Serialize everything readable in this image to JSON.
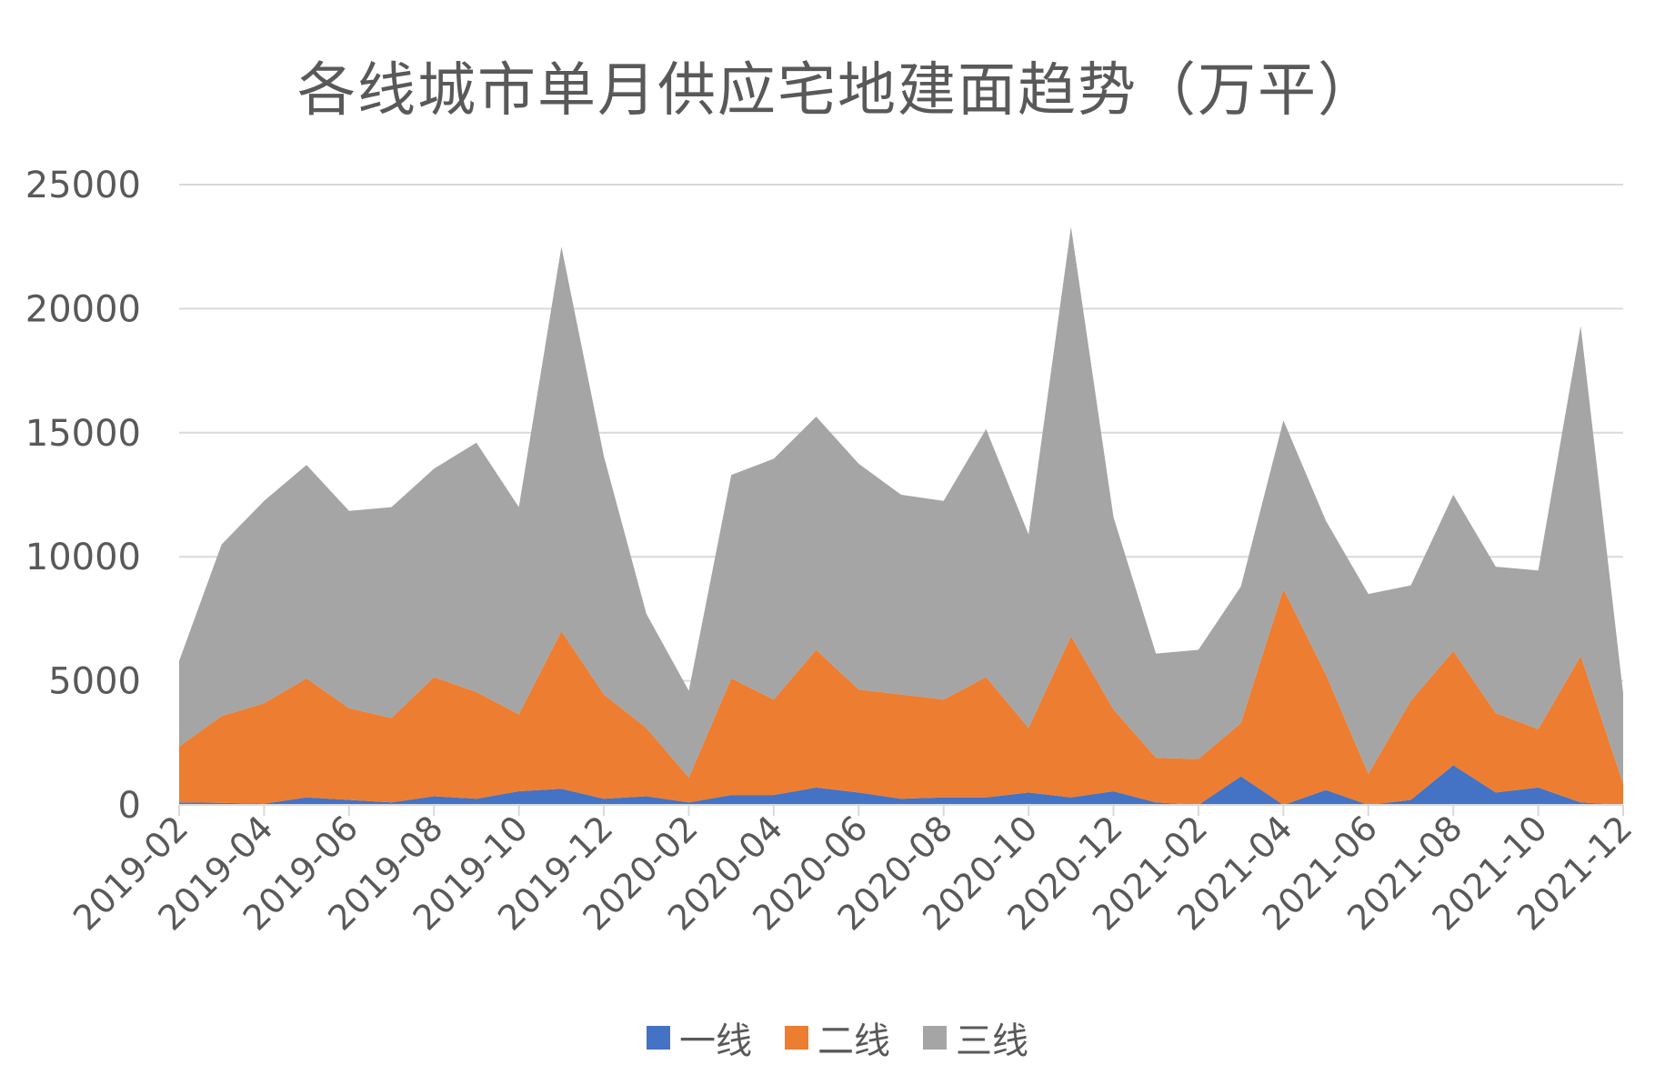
{
  "chart_data": {
    "type": "area",
    "stacked": true,
    "title": "各线城市单月供应宅地建面趋势（万平）",
    "ylim": [
      0,
      25000
    ],
    "yticks": [
      "0",
      "5000",
      "10000",
      "15000",
      "20000",
      "25000"
    ],
    "x": [
      "2019-02",
      "2019-03",
      "2019-04",
      "2019-05",
      "2019-06",
      "2019-07",
      "2019-08",
      "2019-09",
      "2019-10",
      "2019-11",
      "2019-12",
      "2020-01",
      "2020-02",
      "2020-03",
      "2020-04",
      "2020-05",
      "2020-06",
      "2020-07",
      "2020-08",
      "2020-09",
      "2020-10",
      "2020-11",
      "2020-12",
      "2021-01",
      "2021-02",
      "2021-03",
      "2021-04",
      "2021-05",
      "2021-06",
      "2021-07",
      "2021-08",
      "2021-09",
      "2021-10",
      "2021-11",
      "2021-12"
    ],
    "xtick_labels": [
      "2019-02",
      "2019-04",
      "2019-06",
      "2019-08",
      "2019-10",
      "2019-12",
      "2020-02",
      "2020-04",
      "2020-06",
      "2020-08",
      "2020-10",
      "2020-12",
      "2021-02",
      "2021-04",
      "2021-06",
      "2021-08",
      "2021-10",
      "2021-12"
    ],
    "series": [
      {
        "name": "一线",
        "color": "#4472C4",
        "values": [
          100,
          80,
          50,
          300,
          200,
          100,
          350,
          250,
          550,
          650,
          250,
          350,
          100,
          400,
          400,
          700,
          500,
          250,
          300,
          300,
          500,
          300,
          550,
          100,
          0,
          1150,
          0,
          600,
          0,
          200,
          1600,
          500,
          700,
          100,
          0
        ]
      },
      {
        "name": "二线",
        "color": "#ED7D31",
        "values": [
          2250,
          3500,
          4050,
          4800,
          3700,
          3400,
          4800,
          4300,
          3100,
          6350,
          4200,
          2750,
          1000,
          4700,
          3850,
          5550,
          4150,
          4200,
          3950,
          4850,
          2600,
          6500,
          3300,
          1800,
          1850,
          2150,
          8700,
          4650,
          1250,
          4000,
          4600,
          3200,
          2350,
          5900,
          850
        ]
      },
      {
        "name": "三线",
        "color": "#A5A5A5",
        "values": [
          3450,
          6920,
          8150,
          8600,
          7950,
          8500,
          8400,
          10050,
          8350,
          15500,
          9600,
          4600,
          3500,
          8200,
          9700,
          9400,
          9100,
          8050,
          8000,
          10000,
          7800,
          16500,
          7750,
          4200,
          4400,
          5500,
          6800,
          6200,
          7250,
          4650,
          6300,
          5900,
          6400,
          13300,
          3650
        ]
      }
    ]
  }
}
